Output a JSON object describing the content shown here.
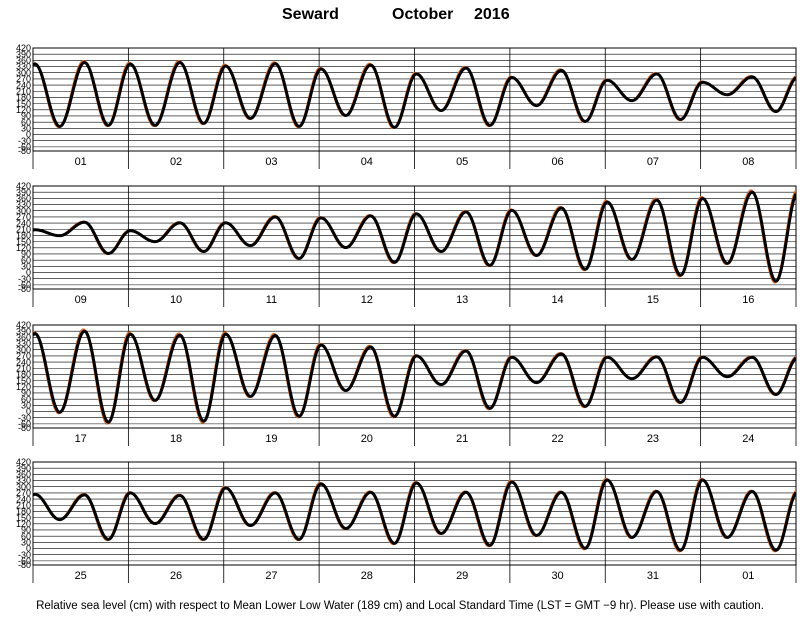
{
  "title": {
    "station": "Seward",
    "month": "October",
    "year": "2016"
  },
  "footer": "Relative sea level (cm) with respect to Mean Lower Low Water (189 cm) and Local Standard Time (LST = GMT −9 hr). Please use with caution.",
  "chart_data": {
    "type": "line",
    "ylim": [
      -80,
      420
    ],
    "yticks": [
      420,
      390,
      360,
      330,
      300,
      270,
      240,
      210,
      180,
      150,
      120,
      90,
      60,
      30,
      0,
      -30,
      -60,
      -80
    ],
    "grid": true,
    "series_colors": {
      "observed": "#000000",
      "predicted": "#e07020"
    },
    "panels": [
      {
        "days": [
          "01",
          "02",
          "03",
          "04",
          "05",
          "06",
          "07",
          "08"
        ],
        "highs": [
          [
            350,
            358
          ],
          [
            350,
            358
          ],
          [
            340,
            352
          ],
          [
            325,
            345
          ],
          [
            300,
            330
          ],
          [
            282,
            318
          ],
          [
            268,
            300
          ],
          [
            258,
            285
          ]
        ],
        "lows": [
          [
            35,
            40
          ],
          [
            40,
            50
          ],
          [
            75,
            35
          ],
          [
            90,
            30
          ],
          [
            115,
            40
          ],
          [
            140,
            60
          ],
          [
            165,
            70
          ],
          [
            195,
            110
          ]
        ]
      },
      {
        "days": [
          "09",
          "10",
          "11",
          "12",
          "13",
          "14",
          "15",
          "16"
        ],
        "highs": [
          [
            210,
            248
          ],
          [
            205,
            245
          ],
          [
            245,
            275
          ],
          [
            270,
            280
          ],
          [
            290,
            300
          ],
          [
            308,
            320
          ],
          [
            350,
            360
          ],
          [
            368,
            400
          ]
        ],
        "lows": [
          [
            180,
            90
          ],
          [
            150,
            100
          ],
          [
            130,
            65
          ],
          [
            120,
            45
          ],
          [
            100,
            30
          ],
          [
            80,
            10
          ],
          [
            60,
            -20
          ],
          [
            40,
            -50
          ]
        ]
      },
      {
        "days": [
          "17",
          "18",
          "19",
          "20",
          "21",
          "22",
          "23",
          "24"
        ],
        "highs": [
          [
            388,
            400
          ],
          [
            385,
            380
          ],
          [
            385,
            378
          ],
          [
            330,
            320
          ],
          [
            275,
            300
          ],
          [
            268,
            285
          ],
          [
            268,
            270
          ],
          [
            268,
            268
          ]
        ],
        "lows": [
          [
            -10,
            -60
          ],
          [
            50,
            -55
          ],
          [
            70,
            -30
          ],
          [
            100,
            -30
          ],
          [
            130,
            10
          ],
          [
            140,
            20
          ],
          [
            160,
            40
          ],
          [
            170,
            80
          ]
        ]
      },
      {
        "days": [
          "25",
          "26",
          "27",
          "28",
          "29",
          "30",
          "31",
          "01"
        ],
        "highs": [
          [
            268,
            265
          ],
          [
            275,
            262
          ],
          [
            300,
            275
          ],
          [
            320,
            278
          ],
          [
            325,
            278
          ],
          [
            330,
            278
          ],
          [
            340,
            282
          ],
          [
            340,
            282
          ]
        ],
        "lows": [
          [
            140,
            40
          ],
          [
            120,
            40
          ],
          [
            110,
            40
          ],
          [
            95,
            20
          ],
          [
            70,
            10
          ],
          [
            60,
            -5
          ],
          [
            50,
            -15
          ],
          [
            50,
            -15
          ]
        ]
      }
    ]
  }
}
